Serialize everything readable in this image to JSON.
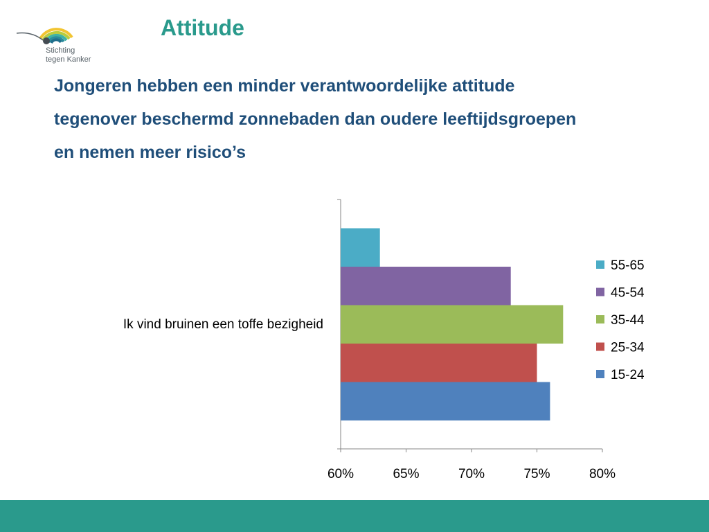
{
  "slide": {
    "title": "Attitude",
    "subtitle_lines": [
      "Jongeren hebben een minder verantwoordelijke attitude",
      "tegenover beschermd zonnebaden dan oudere leeftijdsgroepen",
      "en nemen meer risico’s"
    ]
  },
  "logo": {
    "line1": "Stichting",
    "line2": "tegen Kanker",
    "icon": "rainbow-arcs-logo-icon"
  },
  "colors": {
    "title": "#2a9a8c",
    "subtitle": "#1f4e79",
    "footer": "#2a9a8c"
  },
  "chart_data": {
    "type": "bar",
    "orientation": "horizontal",
    "title": "",
    "xlabel": "",
    "ylabel": "",
    "categories": [
      "Ik vind bruinen een toffe bezigheid"
    ],
    "series": [
      {
        "name": "15-24",
        "values": [
          76
        ],
        "color": "#4f81bd"
      },
      {
        "name": "25-34",
        "values": [
          75
        ],
        "color": "#c0504d"
      },
      {
        "name": "35-44",
        "values": [
          77
        ],
        "color": "#9bbb59"
      },
      {
        "name": "45-54",
        "values": [
          73
        ],
        "color": "#8064a2"
      },
      {
        "name": "55-65",
        "values": [
          63
        ],
        "color": "#4bacc6"
      }
    ],
    "xlim": [
      60,
      80
    ],
    "xticks": [
      "60%",
      "65%",
      "70%",
      "75%",
      "80%"
    ],
    "legend_order": [
      "55-65",
      "45-54",
      "35-44",
      "25-34",
      "15-24"
    ],
    "legend_position": "right",
    "grid": false
  }
}
